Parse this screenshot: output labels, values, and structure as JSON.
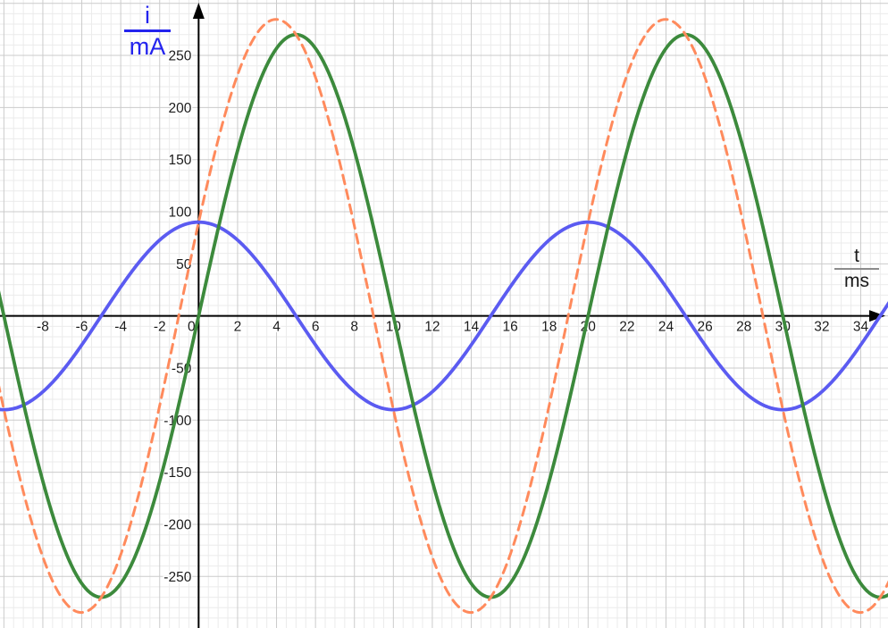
{
  "page": {
    "background": "#ffffff"
  },
  "chart_data": {
    "type": "line",
    "title": "",
    "x_axis": {
      "label_numerator": "t",
      "label_denominator": "ms",
      "label_color": "#1a1a1a",
      "bar_color": "#8c8c8c",
      "range_ms": [
        -10.2,
        35.4
      ],
      "tick_values": [
        -8,
        -6,
        -4,
        -2,
        0,
        2,
        4,
        6,
        8,
        10,
        12,
        14,
        16,
        18,
        20,
        22,
        24,
        26,
        28,
        30,
        32,
        34
      ]
    },
    "y_axis": {
      "label_numerator": "i",
      "label_denominator": "mA",
      "label_color": "#2323ee",
      "bar_color": "#2323ee",
      "range_mA": [
        -299.5,
        303.2
      ],
      "tick_values": [
        250,
        200,
        150,
        100,
        50,
        -50,
        -100,
        -150,
        -200,
        -250
      ]
    },
    "grid": {
      "major_step_x_ms": 2,
      "minor_step_x_ms": 0.5,
      "major_step_y_mA": 50,
      "minor_step_y_mA": 10,
      "major_color": "#cbcbcb",
      "minor_color": "#ebebeb"
    },
    "axes_color": "#000000",
    "tick_label_color": "#1b1b1b",
    "series": [
      {
        "name": "i1-blue-sine",
        "color": "#5b5bf1",
        "style": "solid",
        "stroke_width": 3.8,
        "amplitude_mA": 90,
        "period_ms": 20,
        "phase_deg": 90,
        "key_points_ms_mA": [
          [
            -10,
            -90
          ],
          [
            -5,
            0
          ],
          [
            0,
            90
          ],
          [
            5,
            0
          ],
          [
            10,
            -90
          ],
          [
            15,
            0
          ],
          [
            20,
            90
          ],
          [
            25,
            0
          ],
          [
            30,
            -90
          ],
          [
            35,
            0
          ]
        ]
      },
      {
        "name": "i2-green-sine",
        "color": "#3c8a3c",
        "style": "solid",
        "stroke_width": 3.8,
        "amplitude_mA": 270,
        "period_ms": 20,
        "phase_deg": 0,
        "key_points_ms_mA": [
          [
            -10,
            0
          ],
          [
            -5,
            -270
          ],
          [
            0,
            0
          ],
          [
            5,
            270
          ],
          [
            10,
            0
          ],
          [
            15,
            -270
          ],
          [
            20,
            0
          ],
          [
            25,
            270
          ],
          [
            30,
            0
          ]
        ]
      },
      {
        "name": "i-total-orange-dashed",
        "color": "#ff8a5c",
        "style": "dashed",
        "dash_pattern": [
          10,
          7
        ],
        "stroke_width": 3,
        "amplitude_mA": 284.6,
        "period_ms": 20,
        "phase_deg": 18.4,
        "key_points_ms_mA": [
          [
            -1,
            0
          ],
          [
            4,
            284.6
          ],
          [
            9,
            0
          ],
          [
            14,
            -284.6
          ],
          [
            19,
            0
          ],
          [
            24,
            284.6
          ],
          [
            29,
            0
          ]
        ]
      }
    ]
  }
}
